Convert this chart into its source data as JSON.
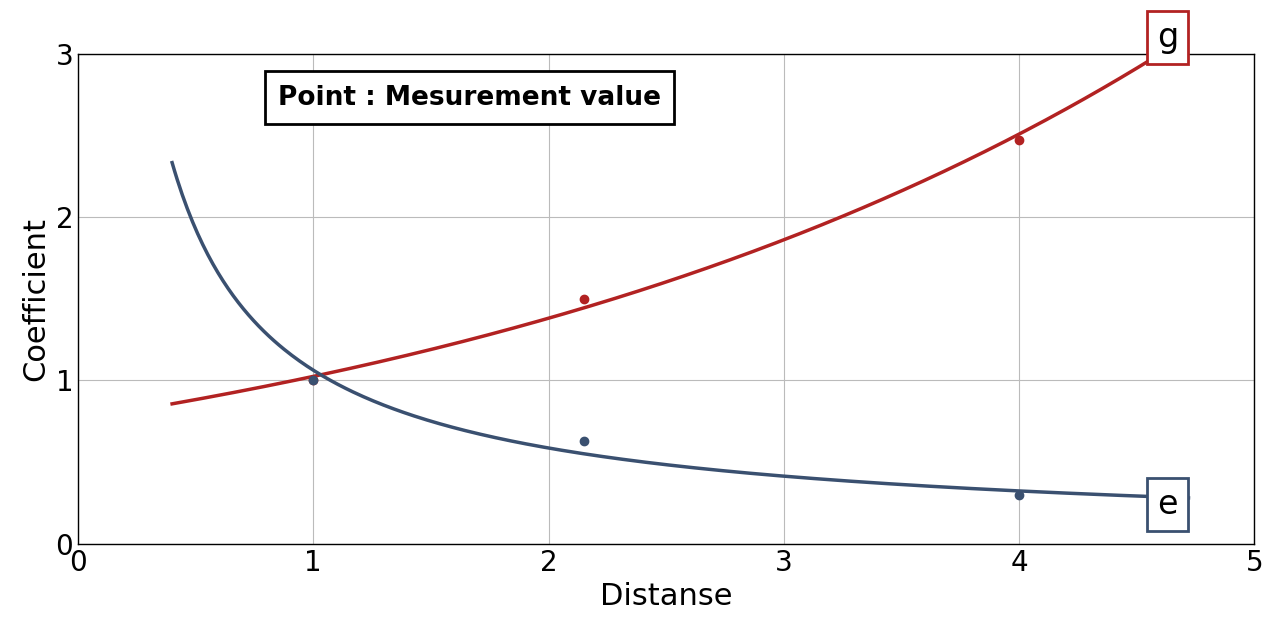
{
  "title": "",
  "xlabel": "Distanse",
  "ylabel": "Coefficient",
  "xlim": [
    0.4,
    5.0
  ],
  "ylim": [
    0.0,
    3.0
  ],
  "xticks": [
    0,
    1,
    2,
    3,
    4,
    5
  ],
  "yticks": [
    0,
    1,
    2,
    3
  ],
  "g_points_x": [
    1.0,
    2.15,
    4.0
  ],
  "g_points_y": [
    1.0,
    1.5,
    2.47
  ],
  "e_points_x": [
    1.0,
    2.15,
    4.0
  ],
  "e_points_y": [
    1.0,
    0.63,
    0.3
  ],
  "g_color": "#B22222",
  "e_color": "#3A5070",
  "legend_text": "Point : Mesurement value",
  "g_label": "g",
  "e_label": "e",
  "background_color": "#ffffff",
  "grid_color": "#bbbbbb",
  "xlabel_fontsize": 22,
  "ylabel_fontsize": 22,
  "tick_fontsize": 20,
  "legend_fontsize": 19,
  "label_fontsize": 24,
  "line_width": 2.5,
  "marker_size": 6
}
